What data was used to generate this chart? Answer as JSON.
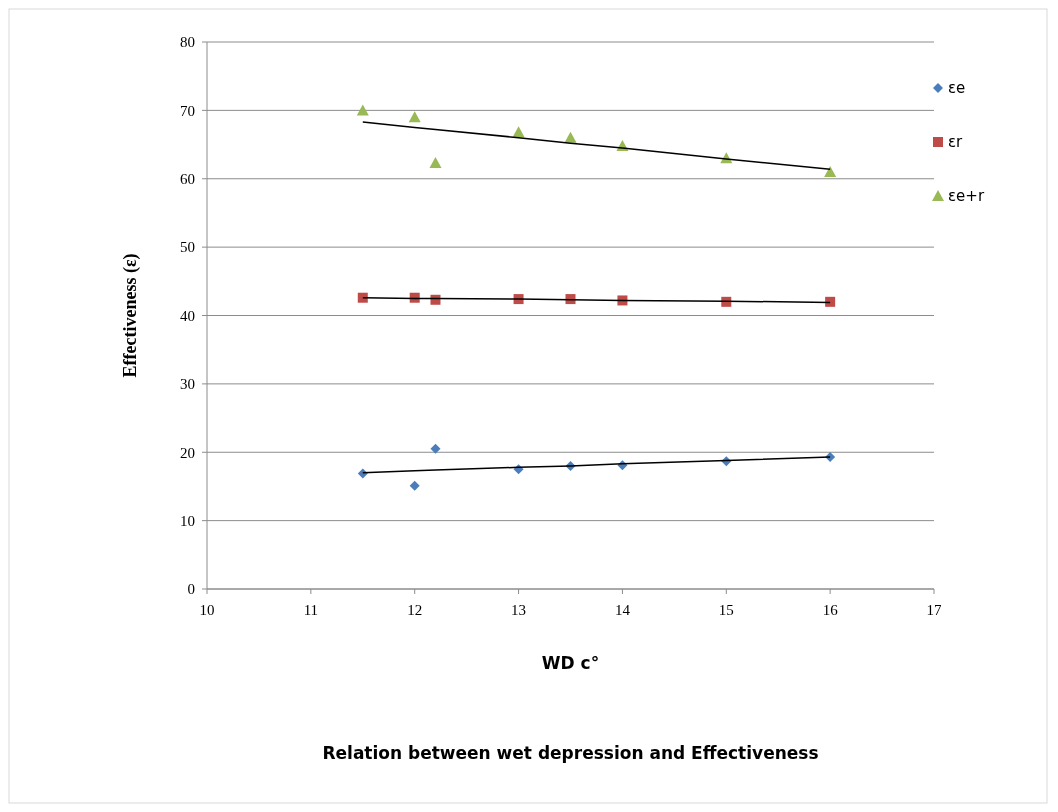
{
  "chart_data": {
    "type": "scatter",
    "title": "Relation  between wet depression and Effectiveness",
    "xlabel": "WD c°",
    "ylabel": "Effectiveness (ε)",
    "x": [
      11.5,
      12,
      12.2,
      13,
      13.5,
      14,
      15,
      16
    ],
    "series": [
      {
        "name": "εe",
        "color": "#4a7ebb",
        "marker": "diamond",
        "values": [
          16.9,
          15.1,
          20.5,
          17.5,
          18.0,
          18.1,
          18.7,
          19.3
        ]
      },
      {
        "name": "εr",
        "color": "#be4b48",
        "marker": "square",
        "values": [
          42.6,
          42.6,
          42.3,
          42.4,
          42.4,
          42.2,
          42.0,
          42.0
        ]
      },
      {
        "name": "εe+r",
        "color": "#98b954",
        "marker": "triangle",
        "values": [
          70,
          69,
          62.3,
          66.8,
          66,
          64.8,
          63,
          61
        ]
      },
      {
        "type": "line",
        "color": "#000000",
        "marker": "none",
        "values": [
          17.0,
          17.3,
          17.4,
          17.8,
          18.0,
          18.3,
          18.8,
          19.3
        ]
      },
      {
        "type": "line",
        "color": "#000000",
        "marker": "none",
        "values": [
          42.6,
          42.5,
          42.5,
          42.4,
          42.3,
          42.2,
          42.1,
          41.9
        ]
      },
      {
        "type": "line",
        "color": "#000000",
        "marker": "none",
        "values": [
          68.3,
          67.5,
          67.2,
          66.0,
          65.2,
          64.5,
          62.9,
          61.4
        ]
      }
    ],
    "xlim": [
      10,
      17
    ],
    "xticks": [
      10,
      11,
      12,
      13,
      14,
      15,
      16,
      17
    ],
    "ylim": [
      0,
      80
    ],
    "yticks": [
      0,
      10,
      20,
      30,
      40,
      50,
      60,
      70,
      80
    ],
    "grid": "y",
    "legend": "right"
  }
}
